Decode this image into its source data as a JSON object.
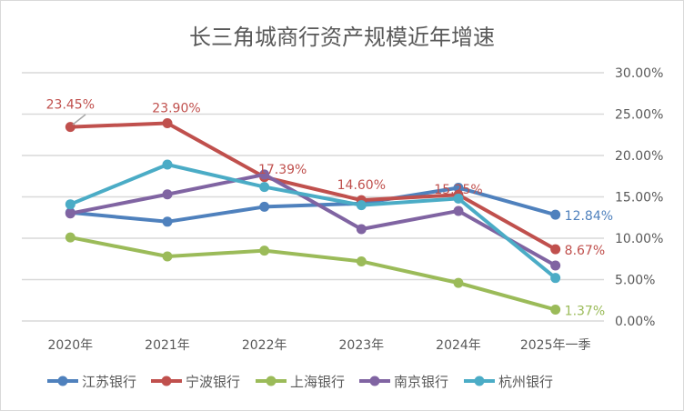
{
  "chart_data": {
    "type": "line",
    "title": "长三角城商行资产规模近年增速",
    "categories": [
      "2020年",
      "2021年",
      "2022年",
      "2023年",
      "2024年",
      "2025年一季"
    ],
    "ylim": [
      0,
      30
    ],
    "yticks": [
      "0.00%",
      "5.00%",
      "10.00%",
      "15.00%",
      "20.00%",
      "25.00%",
      "30.00%"
    ],
    "ytick_values": [
      0,
      5,
      10,
      15,
      20,
      25,
      30
    ],
    "y_axis_side": "right",
    "grid": true,
    "legend_position": "bottom",
    "series": [
      {
        "name": "江苏银行",
        "color": "#4f81bd",
        "values": [
          13.1,
          12.0,
          13.8,
          14.2,
          16.1,
          12.84
        ],
        "labels": {
          "5": "12.84%"
        }
      },
      {
        "name": "宁波银行",
        "color": "#c0504d",
        "values": [
          23.45,
          23.9,
          17.39,
          14.6,
          15.25,
          8.67
        ],
        "labels": {
          "0": "23.45%",
          "1": "23.90%",
          "2": "17.39%",
          "3": "14.60%",
          "4": "15.25%",
          "5": "8.67%"
        }
      },
      {
        "name": "上海银行",
        "color": "#9bbb59",
        "values": [
          10.1,
          7.8,
          8.5,
          7.2,
          4.6,
          1.37
        ],
        "labels": {
          "5": "1.37%"
        }
      },
      {
        "name": "南京银行",
        "color": "#8064a2",
        "values": [
          13.0,
          15.3,
          17.7,
          11.1,
          13.3,
          6.7
        ],
        "labels": {}
      },
      {
        "name": "杭州银行",
        "color": "#4bacc6",
        "values": [
          14.1,
          18.9,
          16.2,
          14.0,
          14.8,
          5.2
        ],
        "labels": {}
      }
    ]
  }
}
